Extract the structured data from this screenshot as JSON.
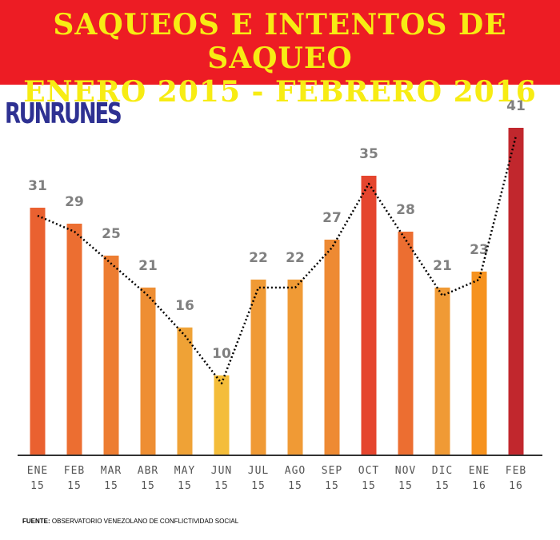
{
  "header": {
    "title_line1": "SAQUEOS E INTENTOS DE SAQUEO",
    "title_line2": "ENERO 2015 - FEBRERO 2016",
    "background": "#ed1c24",
    "text_color": "#f7ec13"
  },
  "logo": {
    "text": "RUNRUNES",
    "color": "#2e3192"
  },
  "source": {
    "label": "FUENTE:",
    "text": "OBSERVATORIO VENEZOLANO DE CONFLICTIVIDAD SOCIAL"
  },
  "chart_data": {
    "type": "bar",
    "categories": [
      [
        "ENE",
        "15"
      ],
      [
        "FEB",
        "15"
      ],
      [
        "MAR",
        "15"
      ],
      [
        "ABR",
        "15"
      ],
      [
        "MAY",
        "15"
      ],
      [
        "JUN",
        "15"
      ],
      [
        "JUL",
        "15"
      ],
      [
        "AGO",
        "15"
      ],
      [
        "SEP",
        "15"
      ],
      [
        "OCT",
        "15"
      ],
      [
        "NOV",
        "15"
      ],
      [
        "DIC",
        "15"
      ],
      [
        "ENE",
        "16"
      ],
      [
        "FEB",
        "16"
      ]
    ],
    "values": [
      31,
      29,
      25,
      21,
      16,
      10,
      22,
      22,
      27,
      35,
      28,
      21,
      23,
      41
    ],
    "bar_colors": [
      "#ea6130",
      "#ec6e31",
      "#ed7d31",
      "#ee8e33",
      "#efa236",
      "#f4bd3a",
      "#f09a35",
      "#f09a35",
      "#ee8a33",
      "#e5452e",
      "#ec6e31",
      "#f09a35",
      "#f6921e",
      "#c1272d"
    ],
    "trend_line": {
      "style": "dotted",
      "color": "#000000"
    },
    "ylim": [
      0,
      41
    ],
    "title": "SAQUEOS E INTENTOS DE SAQUEO ENERO 2015 - FEBRERO 2016",
    "xlabel": "",
    "ylabel": "",
    "grid": false,
    "legend": "none"
  }
}
